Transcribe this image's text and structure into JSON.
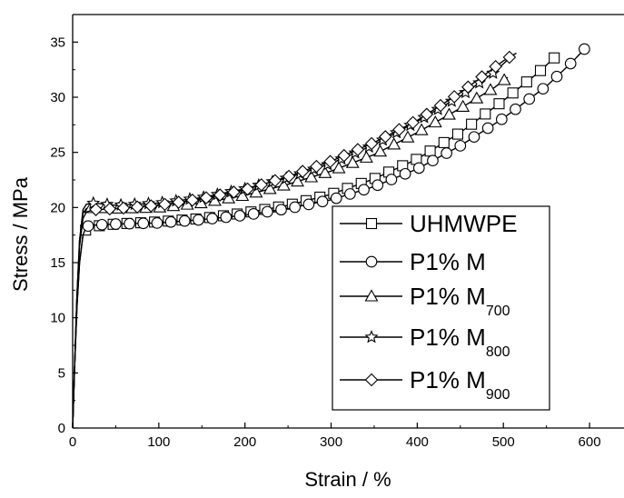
{
  "chart_data": {
    "type": "line",
    "xlabel": "Strain / %",
    "ylabel": "Stress / MPa",
    "xlim": [
      0,
      640
    ],
    "ylim": [
      0,
      37.5
    ],
    "xticks": [
      "0",
      "100",
      "200",
      "300",
      "400",
      "500",
      "600"
    ],
    "yticks": [
      "0",
      "5",
      "10",
      "15",
      "20",
      "25",
      "30",
      "35"
    ],
    "grid": false,
    "legend_position": "bottom-right",
    "series": [
      {
        "name": "UHMWPE",
        "legend": {
          "main": "UHMWPE",
          "sub": ""
        },
        "marker": "square",
        "points": [
          [
            0,
            0
          ],
          [
            2,
            5
          ],
          [
            5,
            11
          ],
          [
            8,
            15
          ],
          [
            12,
            17.5
          ],
          [
            16,
            18.1
          ],
          [
            25,
            18.3
          ],
          [
            50,
            18.5
          ],
          [
            100,
            18.7
          ],
          [
            150,
            19.0
          ],
          [
            200,
            19.5
          ],
          [
            250,
            20.2
          ],
          [
            300,
            21.2
          ],
          [
            350,
            22.6
          ],
          [
            400,
            24.4
          ],
          [
            450,
            26.8
          ],
          [
            500,
            29.7
          ],
          [
            540,
            32.2
          ],
          [
            565,
            34.0
          ]
        ]
      },
      {
        "name": "P1% M",
        "legend": {
          "main": "P1% M",
          "sub": ""
        },
        "marker": "circle",
        "points": [
          [
            0,
            0
          ],
          [
            2,
            5
          ],
          [
            5,
            11
          ],
          [
            8,
            15
          ],
          [
            12,
            17.5
          ],
          [
            16,
            18.3
          ],
          [
            25,
            18.4
          ],
          [
            50,
            18.5
          ],
          [
            100,
            18.6
          ],
          [
            150,
            18.9
          ],
          [
            200,
            19.3
          ],
          [
            250,
            19.9
          ],
          [
            300,
            20.7
          ],
          [
            350,
            21.9
          ],
          [
            400,
            23.5
          ],
          [
            450,
            25.6
          ],
          [
            500,
            28.1
          ],
          [
            550,
            31.0
          ],
          [
            580,
            33.2
          ],
          [
            598,
            34.7
          ]
        ]
      },
      {
        "name": "P1% M700",
        "legend": {
          "main": "P1% M",
          "sub": "700"
        },
        "marker": "triangle",
        "points": [
          [
            0,
            0
          ],
          [
            2,
            5
          ],
          [
            5,
            12
          ],
          [
            8,
            17
          ],
          [
            12,
            19.5
          ],
          [
            16,
            19.9
          ],
          [
            25,
            20.0
          ],
          [
            50,
            19.9
          ],
          [
            100,
            20.0
          ],
          [
            150,
            20.4
          ],
          [
            200,
            21.1
          ],
          [
            250,
            22.1
          ],
          [
            300,
            23.3
          ],
          [
            350,
            24.8
          ],
          [
            400,
            26.8
          ],
          [
            450,
            29.0
          ],
          [
            490,
            30.9
          ],
          [
            505,
            31.8
          ]
        ]
      },
      {
        "name": "P1% M800",
        "legend": {
          "main": "P1% M",
          "sub": "800"
        },
        "marker": "star",
        "points": [
          [
            0,
            0
          ],
          [
            2,
            5
          ],
          [
            5,
            12
          ],
          [
            8,
            17
          ],
          [
            12,
            19.8
          ],
          [
            16,
            20.3
          ],
          [
            25,
            20.4
          ],
          [
            50,
            20.2
          ],
          [
            100,
            20.4
          ],
          [
            150,
            20.9
          ],
          [
            200,
            21.7
          ],
          [
            250,
            22.7
          ],
          [
            300,
            24.0
          ],
          [
            350,
            25.7
          ],
          [
            400,
            27.8
          ],
          [
            450,
            30.1
          ],
          [
            490,
            32.3
          ],
          [
            505,
            33.4
          ]
        ]
      },
      {
        "name": "P1% M900",
        "legend": {
          "main": "P1% M",
          "sub": "900"
        },
        "marker": "diamond",
        "points": [
          [
            0,
            0
          ],
          [
            2,
            5
          ],
          [
            5,
            12
          ],
          [
            8,
            16.5
          ],
          [
            12,
            19.0
          ],
          [
            16,
            19.6
          ],
          [
            25,
            19.8
          ],
          [
            50,
            19.9
          ],
          [
            100,
            20.2
          ],
          [
            150,
            20.8
          ],
          [
            200,
            21.6
          ],
          [
            250,
            22.8
          ],
          [
            300,
            24.2
          ],
          [
            350,
            25.9
          ],
          [
            400,
            27.9
          ],
          [
            450,
            30.4
          ],
          [
            500,
            33.3
          ],
          [
            515,
            34.0
          ]
        ]
      }
    ]
  }
}
